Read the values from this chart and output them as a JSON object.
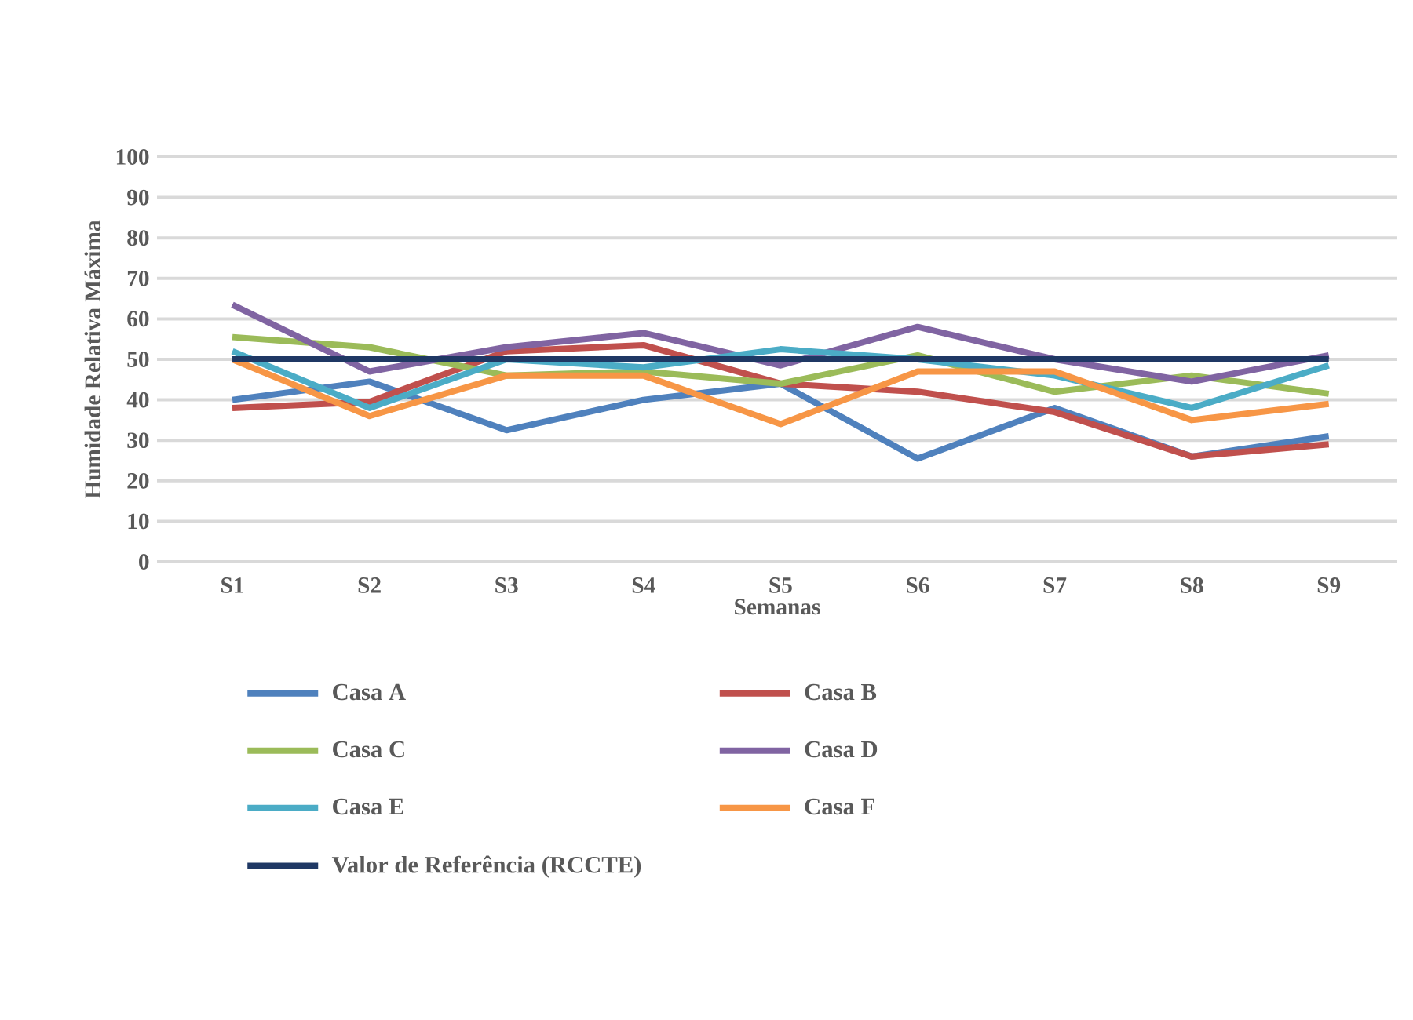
{
  "chart_data": {
    "type": "line",
    "xlabel": "Semanas",
    "ylabel": "Humidade Relativa Máxima",
    "categories": [
      "S1",
      "S2",
      "S3",
      "S4",
      "S5",
      "S6",
      "S7",
      "S8",
      "S9"
    ],
    "series": [
      {
        "name": "Casa A",
        "color": "#4f81bd",
        "values": [
          40,
          44.5,
          32.5,
          40,
          44,
          25.5,
          38,
          26,
          31
        ]
      },
      {
        "name": "Casa B",
        "color": "#c0504d",
        "values": [
          38,
          39.5,
          52,
          53.5,
          44,
          42,
          37,
          26,
          29
        ]
      },
      {
        "name": "Casa C",
        "color": "#9bbb59",
        "values": [
          55.5,
          53,
          46,
          47,
          44,
          51,
          42,
          46,
          41.5
        ]
      },
      {
        "name": "Casa D",
        "color": "#8064a2",
        "values": [
          63.5,
          47,
          53,
          56.5,
          48.5,
          58,
          50,
          44.5,
          51
        ]
      },
      {
        "name": "Casa E",
        "color": "#4bacc6",
        "values": [
          52,
          38,
          50,
          48,
          52.5,
          50,
          46,
          38,
          48.5
        ]
      },
      {
        "name": "Casa F",
        "color": "#f79646",
        "values": [
          50,
          36,
          46,
          46,
          34,
          47,
          47,
          35,
          39
        ]
      },
      {
        "name": "Valor de Referência (RCCTE)",
        "color": "#1f3864",
        "values": [
          50,
          50,
          50,
          50,
          50,
          50,
          50,
          50,
          50
        ]
      }
    ],
    "ylim": [
      0,
      100
    ],
    "yticks": [
      0,
      10,
      20,
      30,
      40,
      50,
      60,
      70,
      80,
      90,
      100
    ],
    "grid": "y",
    "legend": "bottom"
  }
}
